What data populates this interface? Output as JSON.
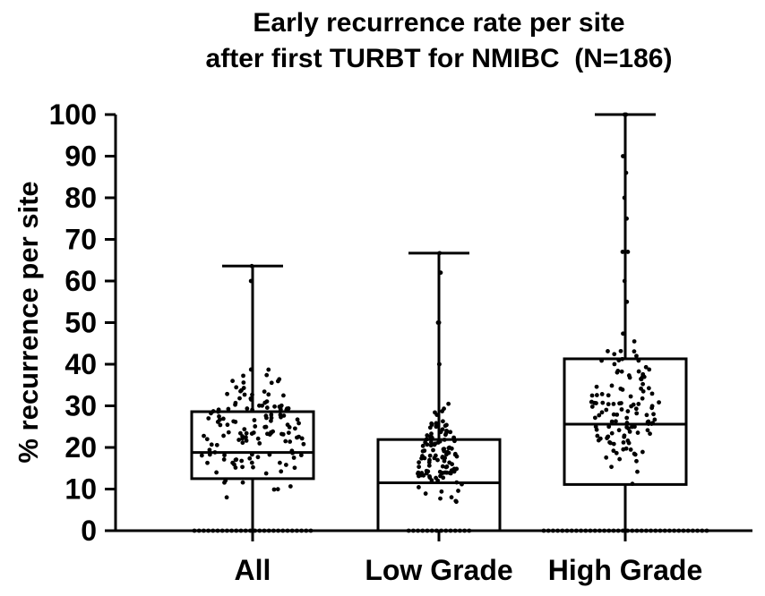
{
  "chart_data": {
    "type": "box",
    "title_lines": [
      "Early recurrence rate per site",
      "after first TURBT for NMIBC  (N=186)"
    ],
    "xlabel": "",
    "ylabel": "% recurrence per site",
    "ylim": [
      0,
      100
    ],
    "yticks": [
      "0",
      "10",
      "20",
      "30",
      "40",
      "50",
      "60",
      "70",
      "80",
      "90",
      "100"
    ],
    "categories": [
      "All",
      "Low Grade",
      "High Grade"
    ],
    "series": [
      {
        "name": "All",
        "min": 0,
        "q1": 12.5,
        "median": 18.8,
        "q3": 28.6,
        "max": 63.6
      },
      {
        "name": "Low Grade",
        "min": 0,
        "q1": 0,
        "median": 11.5,
        "q3": 21.9,
        "max": 66.7
      },
      {
        "name": "High Grade",
        "min": 0,
        "q1": 11.1,
        "median": 25.6,
        "q3": 41.3,
        "max": 100
      }
    ]
  }
}
